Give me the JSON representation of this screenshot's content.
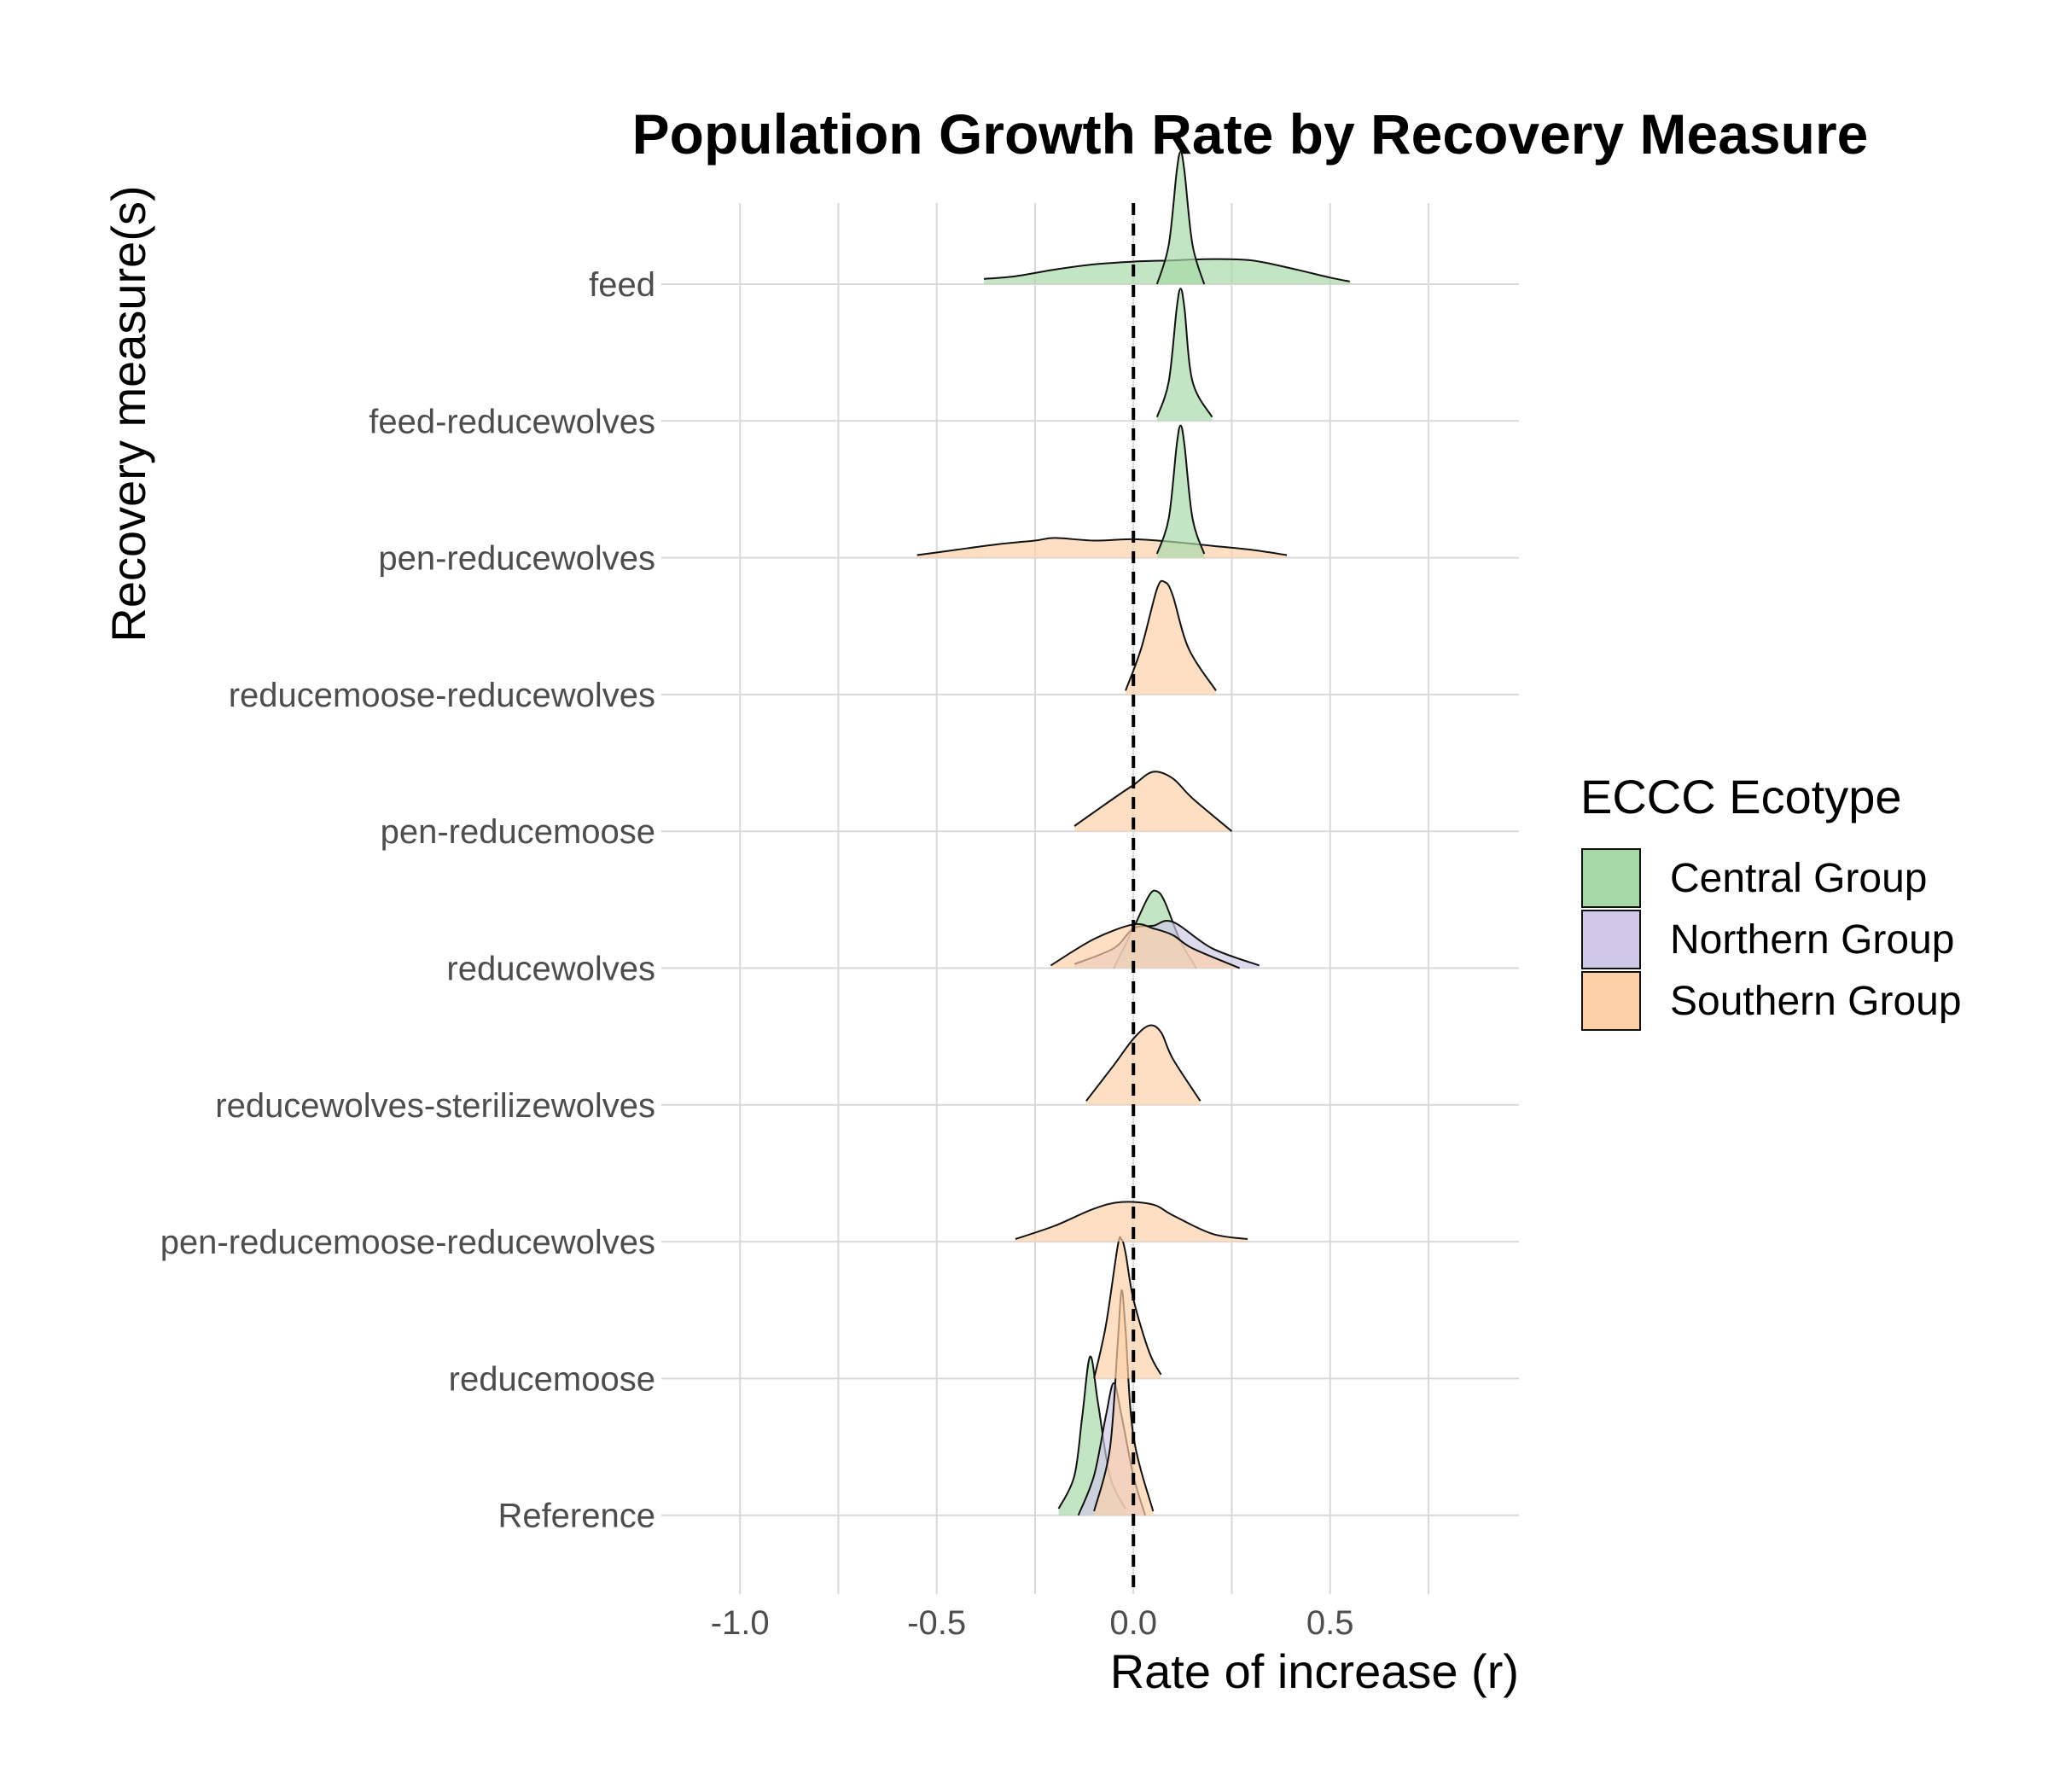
{
  "chart_data": {
    "type": "ridgeline",
    "title": "Population Growth Rate by Recovery Measure",
    "xlabel": "Rate of increase (r)",
    "ylabel": "Recovery measure(s)",
    "xlim": [
      -1.2,
      0.98
    ],
    "x_ticks": [
      -1.0,
      -0.5,
      0.0,
      0.5
    ],
    "x_tick_labels": [
      "-1.0",
      "-0.5",
      "0.0",
      "0.5"
    ],
    "reference_line": {
      "x": 0,
      "style": "dashed"
    },
    "grid": true,
    "categories": [
      "feed",
      "feed-reducewolves",
      "pen-reducewolves",
      "reducemoose-reducewolves",
      "pen-reducemoose",
      "reducewolves",
      "reducewolves-sterilizewolves",
      "pen-reducemoose-reducewolves",
      "reducemoose",
      "Reference"
    ],
    "legend": {
      "title": "ECCC Ecotype",
      "position": "right",
      "entries": [
        {
          "name": "Central Group",
          "color": "#a6d9a6"
        },
        {
          "name": "Northern Group",
          "color": "#cfc8e6"
        },
        {
          "name": "Southern Group",
          "color": "#fdd0a8"
        }
      ]
    },
    "densities": [
      {
        "category": "feed",
        "group": "Central Group",
        "x": [
          -0.38,
          -0.3,
          -0.2,
          -0.1,
          0.0,
          0.1,
          0.2,
          0.3,
          0.4,
          0.5,
          0.55
        ],
        "height": [
          0.04,
          0.06,
          0.11,
          0.15,
          0.17,
          0.18,
          0.19,
          0.18,
          0.12,
          0.05,
          0.02
        ]
      },
      {
        "category": "feed",
        "group": "Central Group",
        "x": [
          0.06,
          0.09,
          0.11,
          0.12,
          0.13,
          0.15,
          0.18
        ],
        "height": [
          0.0,
          0.3,
          0.85,
          1.0,
          0.85,
          0.3,
          0.0
        ]
      },
      {
        "category": "feed-reducewolves",
        "group": "Central Group",
        "x": [
          0.06,
          0.09,
          0.11,
          0.12,
          0.13,
          0.15,
          0.2
        ],
        "height": [
          0.03,
          0.3,
          0.85,
          1.0,
          0.85,
          0.3,
          0.03
        ]
      },
      {
        "category": "pen-reducewolves",
        "group": "Southern Group",
        "x": [
          -0.55,
          -0.45,
          -0.35,
          -0.25,
          -0.2,
          -0.1,
          0.0,
          0.1,
          0.2,
          0.3,
          0.39
        ],
        "height": [
          0.02,
          0.06,
          0.1,
          0.13,
          0.15,
          0.13,
          0.14,
          0.12,
          0.09,
          0.06,
          0.02
        ]
      },
      {
        "category": "pen-reducewolves",
        "group": "Central Group",
        "x": [
          0.06,
          0.09,
          0.11,
          0.12,
          0.13,
          0.15,
          0.18
        ],
        "height": [
          0.03,
          0.3,
          0.85,
          1.0,
          0.85,
          0.3,
          0.03
        ]
      },
      {
        "category": "reducemoose-reducewolves",
        "group": "Southern Group",
        "x": [
          -0.02,
          0.02,
          0.06,
          0.08,
          0.1,
          0.14,
          0.21
        ],
        "height": [
          0.03,
          0.35,
          0.8,
          0.85,
          0.75,
          0.35,
          0.03
        ]
      },
      {
        "category": "pen-reducemoose",
        "group": "Southern Group",
        "x": [
          -0.15,
          -0.05,
          0.0,
          0.05,
          0.1,
          0.15,
          0.25
        ],
        "height": [
          0.04,
          0.25,
          0.35,
          0.45,
          0.4,
          0.25,
          0.0
        ]
      },
      {
        "category": "reducewolves",
        "group": "Central Group",
        "x": [
          -0.05,
          0.0,
          0.04,
          0.06,
          0.08,
          0.12,
          0.16
        ],
        "height": [
          0.0,
          0.3,
          0.55,
          0.58,
          0.5,
          0.2,
          0.0
        ]
      },
      {
        "category": "reducewolves",
        "group": "Northern Group",
        "x": [
          -0.15,
          -0.05,
          0.0,
          0.05,
          0.1,
          0.2,
          0.32
        ],
        "height": [
          0.03,
          0.15,
          0.3,
          0.32,
          0.35,
          0.15,
          0.02
        ]
      },
      {
        "category": "reducewolves",
        "group": "Southern Group",
        "x": [
          -0.21,
          -0.1,
          0.0,
          0.05,
          0.1,
          0.15,
          0.27
        ],
        "height": [
          0.02,
          0.22,
          0.33,
          0.3,
          0.25,
          0.15,
          0.0
        ]
      },
      {
        "category": "reducewolves-sterilizewolves",
        "group": "Southern Group",
        "x": [
          -0.12,
          -0.05,
          0.0,
          0.04,
          0.07,
          0.1,
          0.17
        ],
        "height": [
          0.03,
          0.3,
          0.5,
          0.6,
          0.55,
          0.35,
          0.03
        ]
      },
      {
        "category": "pen-reducemoose-reducewolves",
        "group": "Southern Group",
        "x": [
          -0.3,
          -0.2,
          -0.1,
          -0.03,
          0.05,
          0.1,
          0.2,
          0.29
        ],
        "height": [
          0.02,
          0.12,
          0.25,
          0.3,
          0.28,
          0.2,
          0.06,
          0.02
        ]
      },
      {
        "category": "reducemoose",
        "group": "Southern Group",
        "x": [
          -0.1,
          -0.07,
          -0.04,
          -0.03,
          -0.02,
          0.0,
          0.04,
          0.07
        ],
        "height": [
          0.0,
          0.4,
          1.0,
          1.05,
          0.95,
          0.6,
          0.2,
          0.03
        ]
      },
      {
        "category": "Reference",
        "group": "Central Group",
        "x": [
          -0.19,
          -0.15,
          -0.13,
          -0.11,
          -0.09,
          -0.06,
          -0.02
        ],
        "height": [
          0.05,
          0.3,
          0.75,
          1.2,
          0.85,
          0.3,
          0.05
        ]
      },
      {
        "category": "Reference",
        "group": "Northern Group",
        "x": [
          -0.14,
          -0.1,
          -0.07,
          -0.05,
          -0.03,
          0.0,
          0.03
        ],
        "height": [
          0.0,
          0.3,
          0.75,
          1.0,
          0.75,
          0.3,
          0.0
        ]
      },
      {
        "category": "Reference",
        "group": "Southern Group",
        "x": [
          -0.1,
          -0.06,
          -0.04,
          -0.03,
          -0.02,
          0.0,
          0.05
        ],
        "height": [
          0.03,
          0.5,
          1.3,
          1.7,
          1.4,
          0.6,
          0.03
        ]
      }
    ]
  }
}
